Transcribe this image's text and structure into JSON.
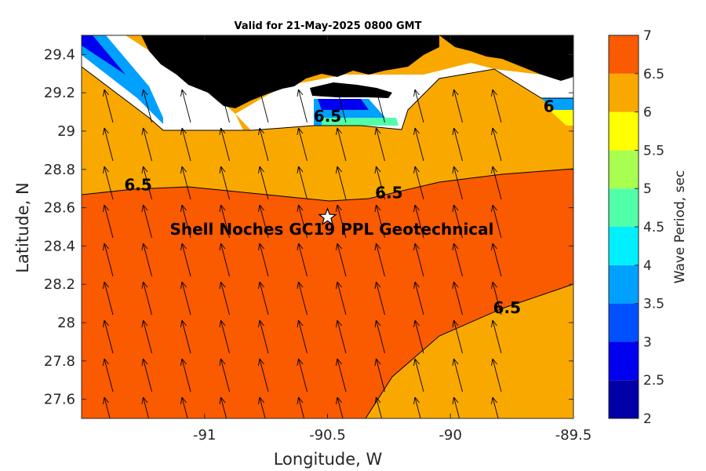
{
  "title": "Valid for 21-May-2025 0800 GMT",
  "map": {
    "xlabel": "Longitude, W",
    "ylabel": "Latitude, N",
    "xlim": [
      -91.5,
      -89.5
    ],
    "ylim": [
      27.5,
      29.5
    ],
    "x_ticks": [
      {
        "value": -91,
        "label": "-91"
      },
      {
        "value": -90.5,
        "label": "-90.5"
      },
      {
        "value": -90,
        "label": "-90"
      },
      {
        "value": -89.5,
        "label": "-89.5"
      }
    ],
    "y_ticks": [
      {
        "value": 27.6,
        "label": "27.6"
      },
      {
        "value": 27.8,
        "label": "27.8"
      },
      {
        "value": 28.0,
        "label": "28"
      },
      {
        "value": 28.2,
        "label": "28.2"
      },
      {
        "value": 28.4,
        "label": "28.4"
      },
      {
        "value": 28.6,
        "label": "28.6"
      },
      {
        "value": 28.8,
        "label": "28.8"
      },
      {
        "value": 29.0,
        "label": "29"
      },
      {
        "value": 29.2,
        "label": "29.2"
      },
      {
        "value": 29.4,
        "label": "29.4"
      }
    ],
    "site": {
      "label": "Shell Noches   GC19 PPL  Geotechnical",
      "lon": -90.5,
      "lat": 28.55,
      "marker": "star-icon"
    },
    "contour_labels": [
      {
        "text": "6.5",
        "lon": -91.27,
        "lat": 28.69
      },
      {
        "text": "6.5",
        "lon": -90.25,
        "lat": 28.65
      },
      {
        "text": "6.5",
        "lon": -89.77,
        "lat": 28.05
      },
      {
        "text": "6",
        "lon": -89.6,
        "lat": 29.1
      },
      {
        "text": "6.5",
        "lon": -90.5,
        "lat": 29.05
      }
    ],
    "wave_direction": "waves travelling toward north-northwest",
    "colors": {
      "period_7_band": "#fa5a00",
      "period_6_5_band": "#f9a800",
      "land": "#000000",
      "coastal_white": "#ffffff"
    }
  },
  "colorbar": {
    "label": "Wave Period, sec",
    "range": [
      2,
      7
    ],
    "ticks": [
      "2",
      "2.5",
      "3",
      "3.5",
      "4",
      "4.5",
      "5",
      "5.5",
      "6",
      "6.5",
      "7"
    ],
    "bands": [
      {
        "from": 2.0,
        "to": 2.5,
        "color": "#0000a8"
      },
      {
        "from": 2.5,
        "to": 3.0,
        "color": "#0000f0"
      },
      {
        "from": 3.0,
        "to": 3.5,
        "color": "#0050ff"
      },
      {
        "from": 3.5,
        "to": 4.0,
        "color": "#00a0ff"
      },
      {
        "from": 4.0,
        "to": 4.5,
        "color": "#00f0ff"
      },
      {
        "from": 4.5,
        "to": 5.0,
        "color": "#50ffa8"
      },
      {
        "from": 5.0,
        "to": 5.5,
        "color": "#a8ff50"
      },
      {
        "from": 5.5,
        "to": 6.0,
        "color": "#ffff00"
      },
      {
        "from": 6.0,
        "to": 6.5,
        "color": "#f9a800"
      },
      {
        "from": 6.5,
        "to": 7.0,
        "color": "#fa5a00"
      }
    ]
  }
}
